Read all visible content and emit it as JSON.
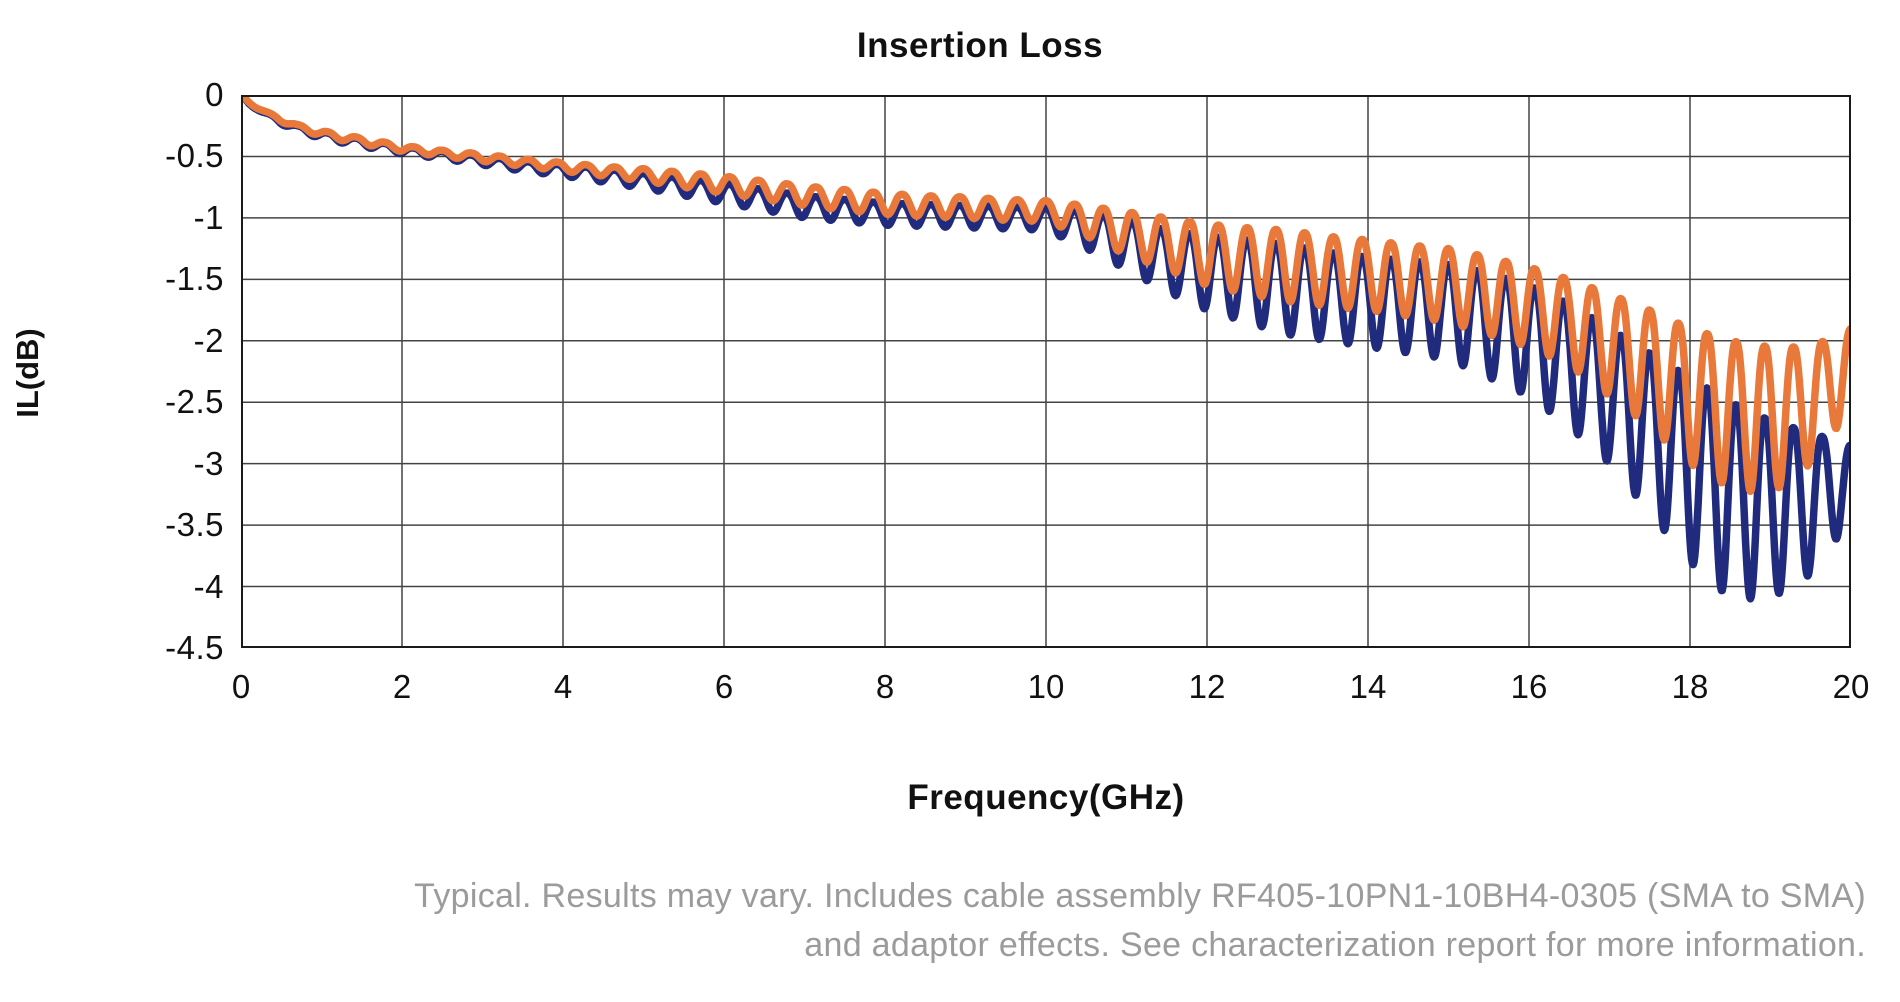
{
  "caption": {
    "line1": "Typical. Results may vary. Includes cable assembly RF405-10PN1-10BH4-0305 (SMA to SMA)",
    "line2": "and adaptor effects. See characterization report for more information.",
    "color": "#9b9b9b"
  },
  "chart_data": {
    "type": "line",
    "title": "Insertion Loss",
    "xlabel": "Frequency(GHz)",
    "ylabel": "IL(dB)",
    "xlim": [
      0,
      20
    ],
    "ylim": [
      -4.5,
      0
    ],
    "grid": "on",
    "legend_position": "none",
    "x_tick_values": [
      0,
      2,
      4,
      6,
      8,
      10,
      12,
      14,
      16,
      18,
      20
    ],
    "x_tick_labels": [
      "0",
      "2",
      "4",
      "6",
      "8",
      "10",
      "12",
      "14",
      "16",
      "18",
      "20"
    ],
    "y_tick_values": [
      0,
      -0.5,
      -1,
      -1.5,
      -2,
      -2.5,
      -3,
      -3.5,
      -4,
      -4.5
    ],
    "y_tick_labels": [
      "0",
      "-0.5",
      "-1",
      "-1.5",
      "-2",
      "-2.5",
      "-3",
      "-3.5",
      "-4",
      "-4.5"
    ],
    "grid_color": "#444444",
    "border_color": "#1a1a1a",
    "ripple_period_ghz": 0.35714,
    "ripple_sharpness": 1.25,
    "x_envelope_ghz": [
      0,
      0.1,
      0.2,
      0.3,
      0.5,
      0.7,
      1,
      1.5,
      2,
      2.5,
      3,
      3.5,
      4,
      4.5,
      5,
      5.5,
      6,
      6.5,
      7,
      7.5,
      8,
      8.5,
      9,
      9.5,
      10,
      10.5,
      11,
      11.5,
      12,
      12.5,
      13,
      13.5,
      14,
      14.5,
      15,
      15.5,
      16,
      16.5,
      17,
      17.5,
      18,
      18.5,
      19,
      19.5,
      20
    ],
    "series": [
      {
        "name": "insertion-loss-navy",
        "color": "#202B7E",
        "line_width": 7.5,
        "upper_envelope_db": [
          0,
          -0.06,
          -0.1,
          -0.14,
          -0.2,
          -0.25,
          -0.3,
          -0.36,
          -0.42,
          -0.46,
          -0.5,
          -0.54,
          -0.57,
          -0.6,
          -0.64,
          -0.68,
          -0.72,
          -0.77,
          -0.82,
          -0.85,
          -0.88,
          -0.89,
          -0.9,
          -0.91,
          -0.92,
          -0.95,
          -1.02,
          -1.1,
          -1.15,
          -1.18,
          -1.22,
          -1.28,
          -1.32,
          -1.35,
          -1.38,
          -1.45,
          -1.55,
          -1.7,
          -1.9,
          -2.1,
          -2.3,
          -2.5,
          -2.65,
          -2.75,
          -2.85
        ],
        "lower_envelope_db": [
          -0.02,
          -0.08,
          -0.12,
          -0.17,
          -0.24,
          -0.29,
          -0.36,
          -0.42,
          -0.48,
          -0.52,
          -0.57,
          -0.62,
          -0.66,
          -0.71,
          -0.76,
          -0.82,
          -0.88,
          -0.94,
          -1.0,
          -1.03,
          -1.06,
          -1.07,
          -1.08,
          -1.09,
          -1.1,
          -1.25,
          -1.42,
          -1.6,
          -1.75,
          -1.85,
          -1.95,
          -2.0,
          -2.05,
          -2.1,
          -2.15,
          -2.3,
          -2.45,
          -2.7,
          -3.0,
          -3.4,
          -3.8,
          -4.1,
          -4.1,
          -3.9,
          -3.45
        ]
      },
      {
        "name": "insertion-loss-orange",
        "color": "#E8793B",
        "line_width": 7.5,
        "upper_envelope_db": [
          0,
          -0.05,
          -0.09,
          -0.13,
          -0.19,
          -0.24,
          -0.29,
          -0.35,
          -0.41,
          -0.45,
          -0.48,
          -0.52,
          -0.55,
          -0.58,
          -0.6,
          -0.63,
          -0.66,
          -0.7,
          -0.74,
          -0.77,
          -0.8,
          -0.82,
          -0.83,
          -0.85,
          -0.86,
          -0.9,
          -0.95,
          -1.0,
          -1.05,
          -1.08,
          -1.1,
          -1.15,
          -1.18,
          -1.22,
          -1.25,
          -1.32,
          -1.4,
          -1.5,
          -1.62,
          -1.75,
          -1.9,
          -2.0,
          -2.05,
          -2.05,
          -1.9
        ],
        "lower_envelope_db": [
          -0.02,
          -0.07,
          -0.11,
          -0.15,
          -0.22,
          -0.27,
          -0.34,
          -0.4,
          -0.46,
          -0.5,
          -0.54,
          -0.58,
          -0.62,
          -0.66,
          -0.7,
          -0.75,
          -0.8,
          -0.85,
          -0.9,
          -0.94,
          -0.97,
          -0.99,
          -1.0,
          -1.02,
          -1.03,
          -1.15,
          -1.3,
          -1.42,
          -1.55,
          -1.62,
          -1.68,
          -1.72,
          -1.75,
          -1.8,
          -1.85,
          -1.95,
          -2.05,
          -2.2,
          -2.45,
          -2.7,
          -3.0,
          -3.2,
          -3.25,
          -3.0,
          -2.55
        ]
      }
    ]
  }
}
